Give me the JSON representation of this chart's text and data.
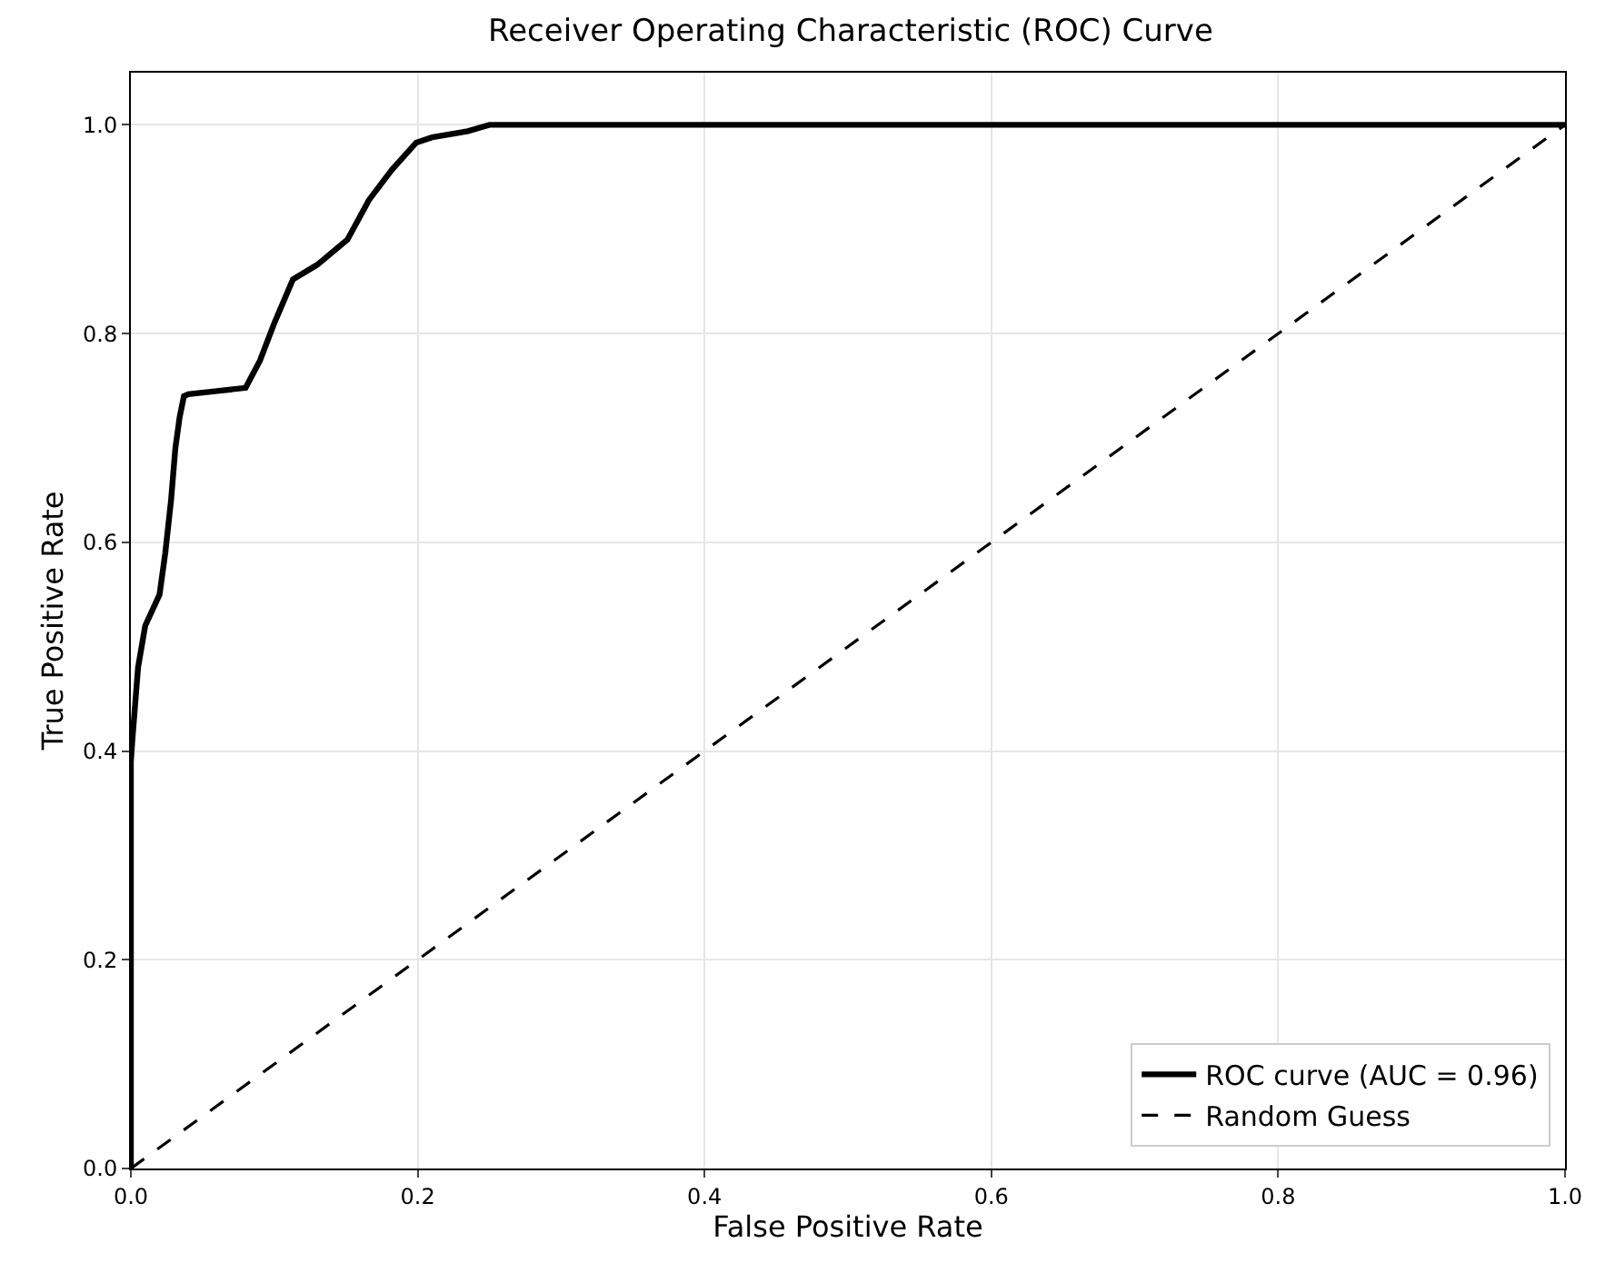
{
  "chart_data": {
    "type": "line",
    "title": "Receiver Operating Characteristic (ROC) Curve",
    "xlabel": "False Positive Rate",
    "ylabel": "True Positive Rate",
    "series": [
      {
        "name": "ROC curve (AUC = 0.96)",
        "color": "#000000",
        "line_style": "solid",
        "x": [
          0,
          0,
          0.001,
          0.005,
          0.01,
          0.02,
          0.024,
          0.028,
          0.031,
          0.034,
          0.037,
          0.04,
          0.06,
          0.08,
          0.09,
          0.1,
          0.113,
          0.13,
          0.151,
          0.166,
          0.182,
          0.199,
          0.21,
          0.235,
          0.25,
          1
        ],
        "values": [
          0,
          0.39,
          0.41,
          0.48,
          0.52,
          0.55,
          0.59,
          0.64,
          0.69,
          0.72,
          0.74,
          0.742,
          0.745,
          0.748,
          0.774,
          0.81,
          0.852,
          0.866,
          0.89,
          0.928,
          0.957,
          0.983,
          0.988,
          0.994,
          1,
          1
        ]
      },
      {
        "name": "Random Guess",
        "color": "#000000",
        "line_style": "dashed",
        "x": [
          0,
          1
        ],
        "values": [
          0,
          1
        ]
      }
    ],
    "xlim": [
      0,
      1
    ],
    "ylim": [
      0,
      1.05
    ],
    "xticks": [
      {
        "value": 0,
        "label": "0.0"
      },
      {
        "value": 0.2,
        "label": "0.2"
      },
      {
        "value": 0.4,
        "label": "0.4"
      },
      {
        "value": 0.6,
        "label": "0.6"
      },
      {
        "value": 0.8,
        "label": "0.8"
      },
      {
        "value": 1,
        "label": "1.0"
      }
    ],
    "yticks": [
      {
        "value": 0,
        "label": "0.0"
      },
      {
        "value": 0.2,
        "label": "0.2"
      },
      {
        "value": 0.4,
        "label": "0.4"
      },
      {
        "value": 0.6,
        "label": "0.6"
      },
      {
        "value": 0.8,
        "label": "0.8"
      },
      {
        "value": 1,
        "label": "1.0"
      }
    ],
    "grid": true,
    "legend": "bottom right",
    "marker": "none"
  }
}
